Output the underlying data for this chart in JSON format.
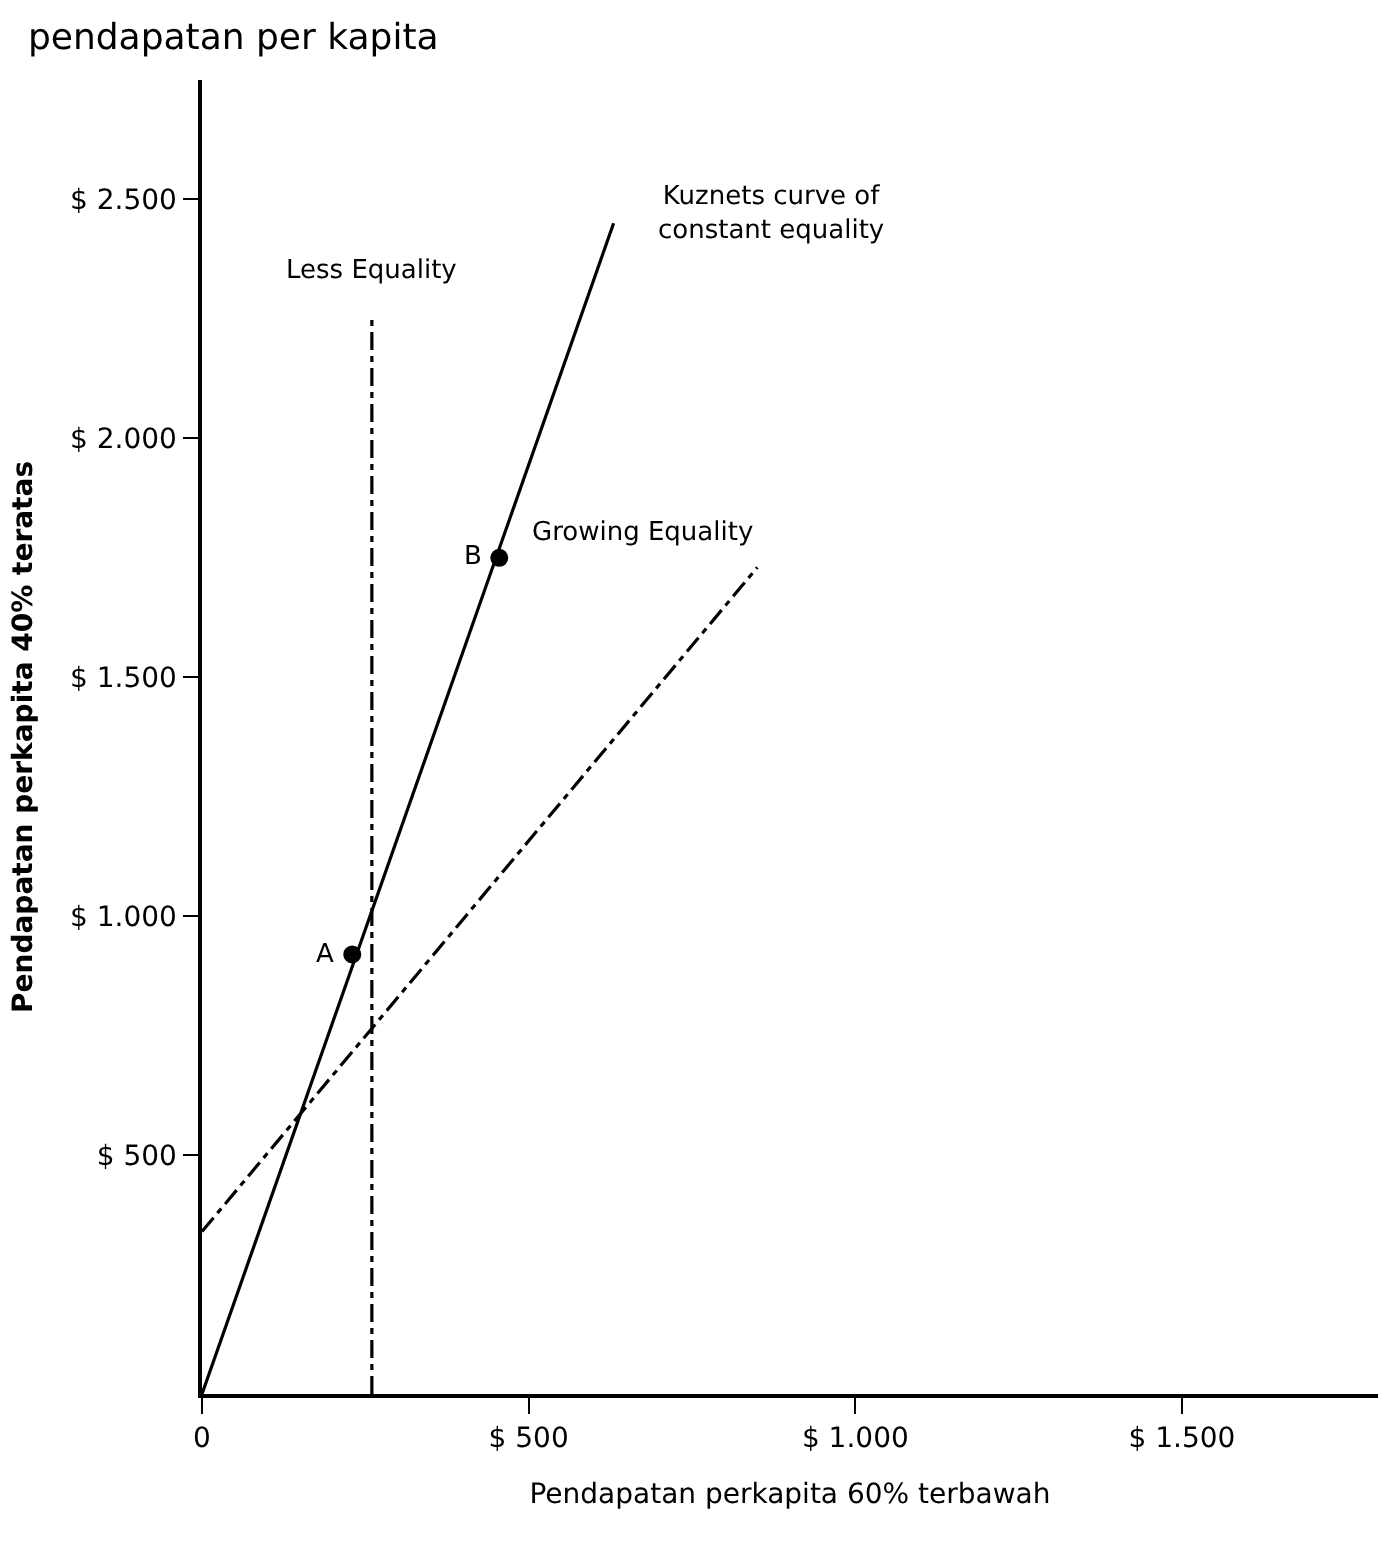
{
  "chart_data": {
    "type": "line",
    "title": "pendapatan per kapita",
    "xlabel": "Pendapatan perkapita 60% terbawah",
    "ylabel": "Pendapatan perkapita 40% teratas",
    "xlim": [
      0,
      1800
    ],
    "ylim": [
      0,
      2750
    ],
    "xticks": [
      0,
      {
        "value": 500,
        "label": "$ 500"
      },
      {
        "value": 1000,
        "label": "$ 1.000"
      },
      {
        "value": 1500,
        "label": "$ 1.500"
      }
    ],
    "yticks": [
      {
        "value": 500,
        "label": "$ 500"
      },
      {
        "value": 1000,
        "label": "$ 1.000"
      },
      {
        "value": 1500,
        "label": "$ 1.500"
      },
      {
        "value": 2000,
        "label": "$ 2.000"
      },
      {
        "value": 2500,
        "label": "$ 2.500"
      }
    ],
    "legend": false,
    "series": [
      {
        "name": "Kuznets curve of constant equality",
        "color": "#000000",
        "line_style": "solid",
        "x": [
          0,
          630
        ],
        "values": [
          0,
          2450
        ]
      },
      {
        "name": "Less Equality",
        "color": "#000000",
        "line_style": "dashed",
        "x": [
          260,
          260
        ],
        "values": [
          0,
          2260
        ]
      },
      {
        "name": "Growing Equality",
        "color": "#000000",
        "line_style": "dashed",
        "x": [
          0,
          850
        ],
        "values": [
          340,
          1730
        ]
      },
      {
        "type": "scatter",
        "color": "#000000",
        "marker": "circle",
        "x": [
          230,
          455
        ],
        "values": [
          920,
          1750
        ]
      }
    ],
    "annotations": [
      {
        "text": "A",
        "x": 230,
        "y": 920
      },
      {
        "text": "B",
        "x": 455,
        "y": 1750
      }
    ]
  }
}
